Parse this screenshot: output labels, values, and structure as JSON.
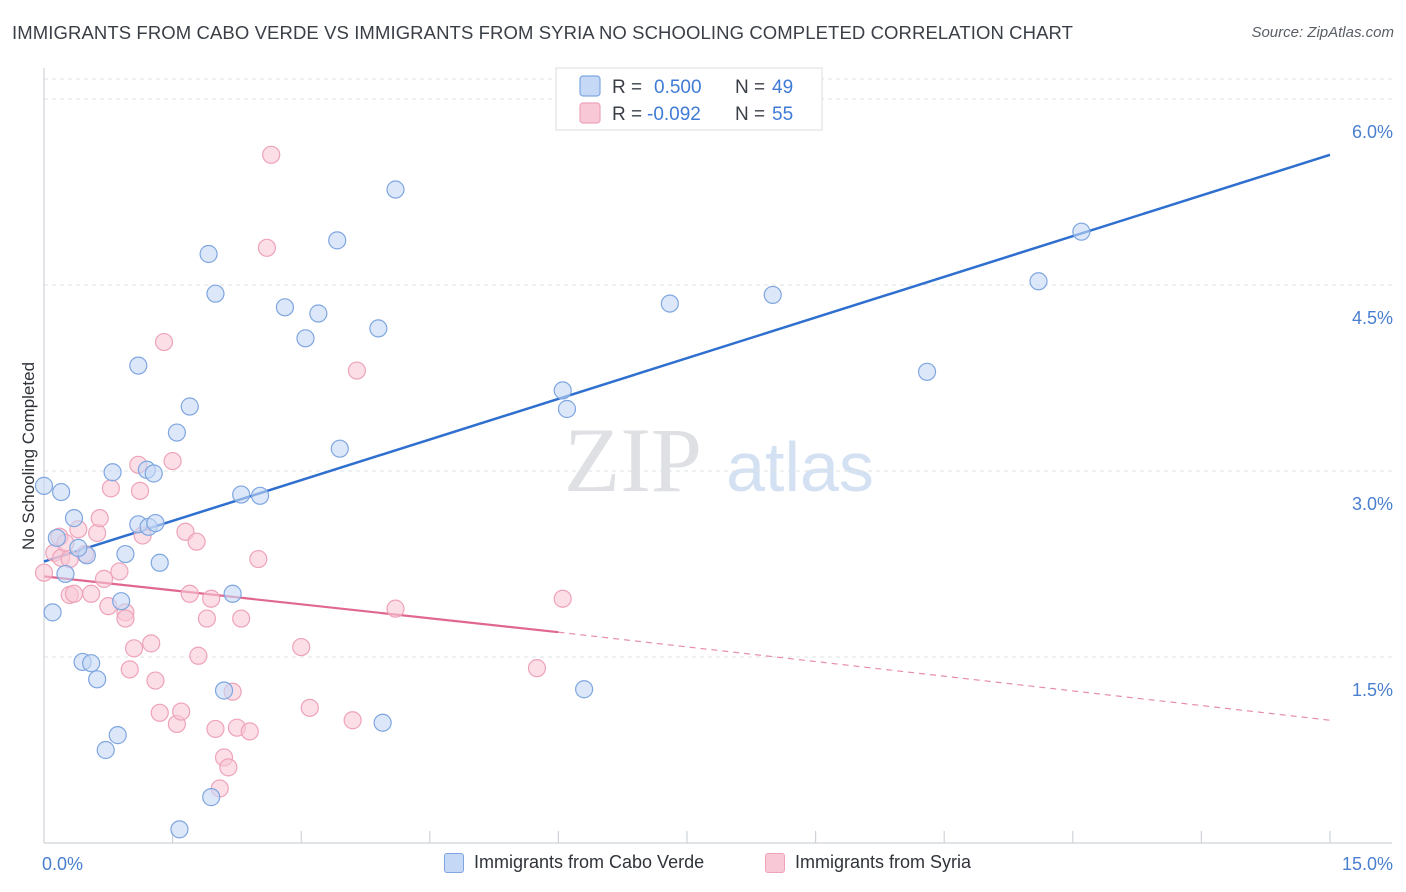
{
  "header": {
    "title": "IMMIGRANTS FROM CABO VERDE VS IMMIGRANTS FROM SYRIA NO SCHOOLING COMPLETED CORRELATION CHART",
    "source": "Source: ZipAtlas.com"
  },
  "watermark": {
    "zip": "ZIP",
    "atlas": "atlas"
  },
  "legend_top": {
    "rows": [
      {
        "r_label": "R =",
        "r_value": "0.500",
        "n_label": "N =",
        "n_value": "49"
      },
      {
        "r_label": "R =",
        "r_value": "-0.092",
        "n_label": "N =",
        "n_value": "55"
      }
    ]
  },
  "legend_bottom": {
    "series1": "Immigrants from Cabo Verde",
    "series2": "Immigrants from Syria"
  },
  "chart_data": {
    "type": "scatter",
    "title": "IMMIGRANTS FROM CABO VERDE VS IMMIGRANTS FROM SYRIA NO SCHOOLING COMPLETED CORRELATION CHART",
    "xlabel": "",
    "ylabel": "No Schooling Completed",
    "xlim": [
      0,
      15
    ],
    "ylim": [
      0,
      6.25
    ],
    "x_tick_labels": [
      {
        "value": 0,
        "label": "0.0%"
      },
      {
        "value": 15,
        "label": "15.0%"
      }
    ],
    "y_ticks": [
      {
        "value": 1.5,
        "label": "1.5%"
      },
      {
        "value": 3.0,
        "label": "3.0%"
      },
      {
        "value": 4.5,
        "label": "4.5%"
      },
      {
        "value": 6.0,
        "label": "6.0%"
      }
    ],
    "x_minor_ticks": [
      1.5,
      3.0,
      4.5,
      6.0,
      7.5,
      9.0,
      10.5,
      12.0,
      13.5,
      15.0
    ],
    "colors": {
      "series1_fill": "#c5d8f5",
      "series1_stroke": "#7fa6e0",
      "series1_line": "#2f6fcf",
      "series2_fill": "#f8c8d6",
      "series2_stroke": "#eea3b9",
      "series2_line": "#e0678f"
    },
    "series": [
      {
        "name": "Immigrants from Cabo Verde",
        "R": 0.5,
        "N": 49,
        "trend": {
          "x0": 0.0,
          "y0": 2.27,
          "x1": 15.0,
          "y1": 5.55
        },
        "points": [
          [
            0.0,
            2.88
          ],
          [
            0.2,
            2.83
          ],
          [
            0.15,
            2.46
          ],
          [
            0.35,
            2.62
          ],
          [
            0.5,
            2.32
          ],
          [
            0.4,
            2.38
          ],
          [
            0.25,
            2.17
          ],
          [
            0.1,
            1.86
          ],
          [
            0.45,
            1.46
          ],
          [
            0.55,
            1.45
          ],
          [
            0.62,
            1.32
          ],
          [
            0.72,
            0.75
          ],
          [
            0.86,
            0.87
          ],
          [
            0.9,
            1.95
          ],
          [
            0.95,
            2.33
          ],
          [
            1.1,
            2.57
          ],
          [
            1.22,
            2.55
          ],
          [
            1.3,
            2.58
          ],
          [
            1.35,
            2.26
          ],
          [
            1.2,
            3.01
          ],
          [
            1.28,
            2.98
          ],
          [
            0.8,
            2.99
          ],
          [
            1.7,
            3.52
          ],
          [
            1.55,
            3.31
          ],
          [
            1.1,
            3.85
          ],
          [
            2.2,
            2.01
          ],
          [
            2.3,
            2.81
          ],
          [
            2.52,
            2.8
          ],
          [
            2.1,
            1.23
          ],
          [
            1.95,
            0.37
          ],
          [
            1.58,
            0.11
          ],
          [
            1.92,
            4.75
          ],
          [
            2.0,
            4.43
          ],
          [
            2.81,
            4.32
          ],
          [
            3.05,
            4.07
          ],
          [
            3.2,
            4.27
          ],
          [
            3.42,
            4.86
          ],
          [
            3.45,
            3.18
          ],
          [
            3.9,
            4.15
          ],
          [
            4.1,
            5.27
          ],
          [
            3.95,
            0.97
          ],
          [
            6.05,
            3.65
          ],
          [
            6.1,
            3.5
          ],
          [
            6.3,
            1.24
          ],
          [
            7.3,
            4.35
          ],
          [
            8.5,
            4.42
          ],
          [
            10.3,
            3.8
          ],
          [
            11.6,
            4.53
          ],
          [
            12.1,
            4.93
          ]
        ]
      },
      {
        "name": "Immigrants from Syria",
        "R": -0.092,
        "N": 55,
        "trend": {
          "x0": 0.0,
          "y0": 2.15,
          "x1": 6.0,
          "y1": 1.7,
          "dashed_to_x": 15.0,
          "dashed_to_y": 0.99
        },
        "points": [
          [
            0.0,
            2.18
          ],
          [
            0.12,
            2.34
          ],
          [
            0.18,
            2.47
          ],
          [
            0.2,
            2.3
          ],
          [
            0.25,
            2.42
          ],
          [
            0.3,
            2.0
          ],
          [
            0.3,
            2.29
          ],
          [
            0.35,
            2.01
          ],
          [
            0.4,
            2.53
          ],
          [
            0.48,
            2.33
          ],
          [
            0.55,
            2.01
          ],
          [
            0.62,
            2.5
          ],
          [
            0.65,
            2.62
          ],
          [
            0.7,
            2.13
          ],
          [
            0.75,
            1.91
          ],
          [
            0.78,
            2.86
          ],
          [
            0.88,
            2.19
          ],
          [
            0.95,
            1.86
          ],
          [
            0.95,
            1.81
          ],
          [
            1.0,
            1.4
          ],
          [
            1.05,
            1.57
          ],
          [
            1.1,
            3.05
          ],
          [
            1.12,
            2.84
          ],
          [
            1.15,
            2.48
          ],
          [
            1.25,
            1.61
          ],
          [
            1.3,
            1.31
          ],
          [
            1.35,
            1.05
          ],
          [
            1.4,
            4.04
          ],
          [
            1.5,
            3.08
          ],
          [
            1.55,
            0.96
          ],
          [
            1.6,
            1.06
          ],
          [
            1.65,
            2.51
          ],
          [
            1.7,
            2.01
          ],
          [
            1.78,
            2.43
          ],
          [
            1.8,
            1.51
          ],
          [
            1.9,
            1.81
          ],
          [
            1.95,
            1.97
          ],
          [
            2.0,
            0.92
          ],
          [
            2.05,
            0.44
          ],
          [
            2.1,
            0.69
          ],
          [
            2.15,
            0.61
          ],
          [
            2.2,
            1.22
          ],
          [
            2.25,
            0.93
          ],
          [
            2.3,
            1.81
          ],
          [
            2.4,
            0.9
          ],
          [
            2.5,
            2.29
          ],
          [
            2.6,
            4.8
          ],
          [
            2.65,
            5.55
          ],
          [
            3.0,
            1.58
          ],
          [
            3.1,
            1.09
          ],
          [
            3.6,
            0.99
          ],
          [
            3.65,
            3.81
          ],
          [
            4.1,
            1.89
          ],
          [
            5.75,
            1.41
          ],
          [
            6.05,
            1.97
          ]
        ]
      }
    ]
  }
}
